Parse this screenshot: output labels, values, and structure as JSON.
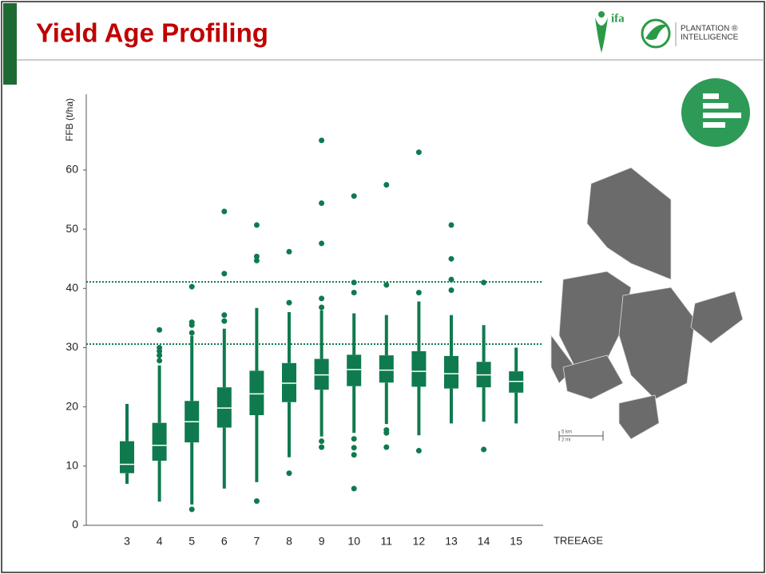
{
  "header": {
    "title": "Yield Age Profiling",
    "logo_text": "ifa",
    "brand_line1": "PLANTATION ®",
    "brand_line2": "INTELLIGENCE"
  },
  "map": {
    "scale_km": "5 km",
    "scale_mi": "2 mi"
  },
  "chart_data": {
    "type": "box",
    "y_label": "FFB (t/ha)",
    "x_label": "TREEAGE",
    "color": "#0f7a4e",
    "categories": [
      "3",
      "4",
      "5",
      "6",
      "7",
      "8",
      "9",
      "10",
      "11",
      "12",
      "13",
      "14",
      "15"
    ],
    "whisker_low": [
      7,
      4,
      3.5,
      6.2,
      7.3,
      11.5,
      15,
      15.6,
      17.1,
      15.2,
      17.2,
      17.5,
      17.2
    ],
    "q1": [
      8.8,
      10.9,
      14,
      16.5,
      18.6,
      20.8,
      22.9,
      23.5,
      24.1,
      23.4,
      23.1,
      23.3,
      22.4
    ],
    "median": [
      10.3,
      13.5,
      17.5,
      19.8,
      22.2,
      24,
      25.4,
      26.3,
      26.2,
      26,
      25.6,
      25.4,
      24.3
    ],
    "q3": [
      14.2,
      17.3,
      21,
      23.3,
      26.1,
      27.4,
      28.1,
      28.8,
      28.7,
      29.4,
      28.6,
      27.6,
      26
    ],
    "whisker_high": [
      20.5,
      27,
      32,
      33.2,
      36.7,
      36,
      36.3,
      35.8,
      35.5,
      37.8,
      35.5,
      33.8,
      30
    ],
    "outliers": [
      [],
      [
        27.8,
        28.7,
        29.4,
        30,
        33
      ],
      [
        2.7,
        32.5,
        33.8,
        34.3,
        40.3
      ],
      [
        34.5,
        35.5,
        42.5,
        53
      ],
      [
        4.1,
        44.7,
        45.4,
        50.7
      ],
      [
        8.8,
        37.6,
        46.2
      ],
      [
        13.2,
        14.2,
        36.8,
        38.3,
        47.6,
        54.4,
        65
      ],
      [
        6.2,
        11.9,
        13.1,
        14.6,
        39.3,
        41,
        55.6
      ],
      [
        13.2,
        15.6,
        16.1,
        40.6,
        57.5
      ],
      [
        12.6,
        39.3,
        63
      ],
      [
        39.7,
        41.5,
        45,
        50.7
      ],
      [
        12.8,
        41
      ],
      []
    ],
    "reference_lines": [
      41.1,
      30.6
    ],
    "ylim": [
      0,
      72.8
    ],
    "yticks": [
      0,
      10,
      20,
      30,
      40,
      50,
      60
    ]
  }
}
